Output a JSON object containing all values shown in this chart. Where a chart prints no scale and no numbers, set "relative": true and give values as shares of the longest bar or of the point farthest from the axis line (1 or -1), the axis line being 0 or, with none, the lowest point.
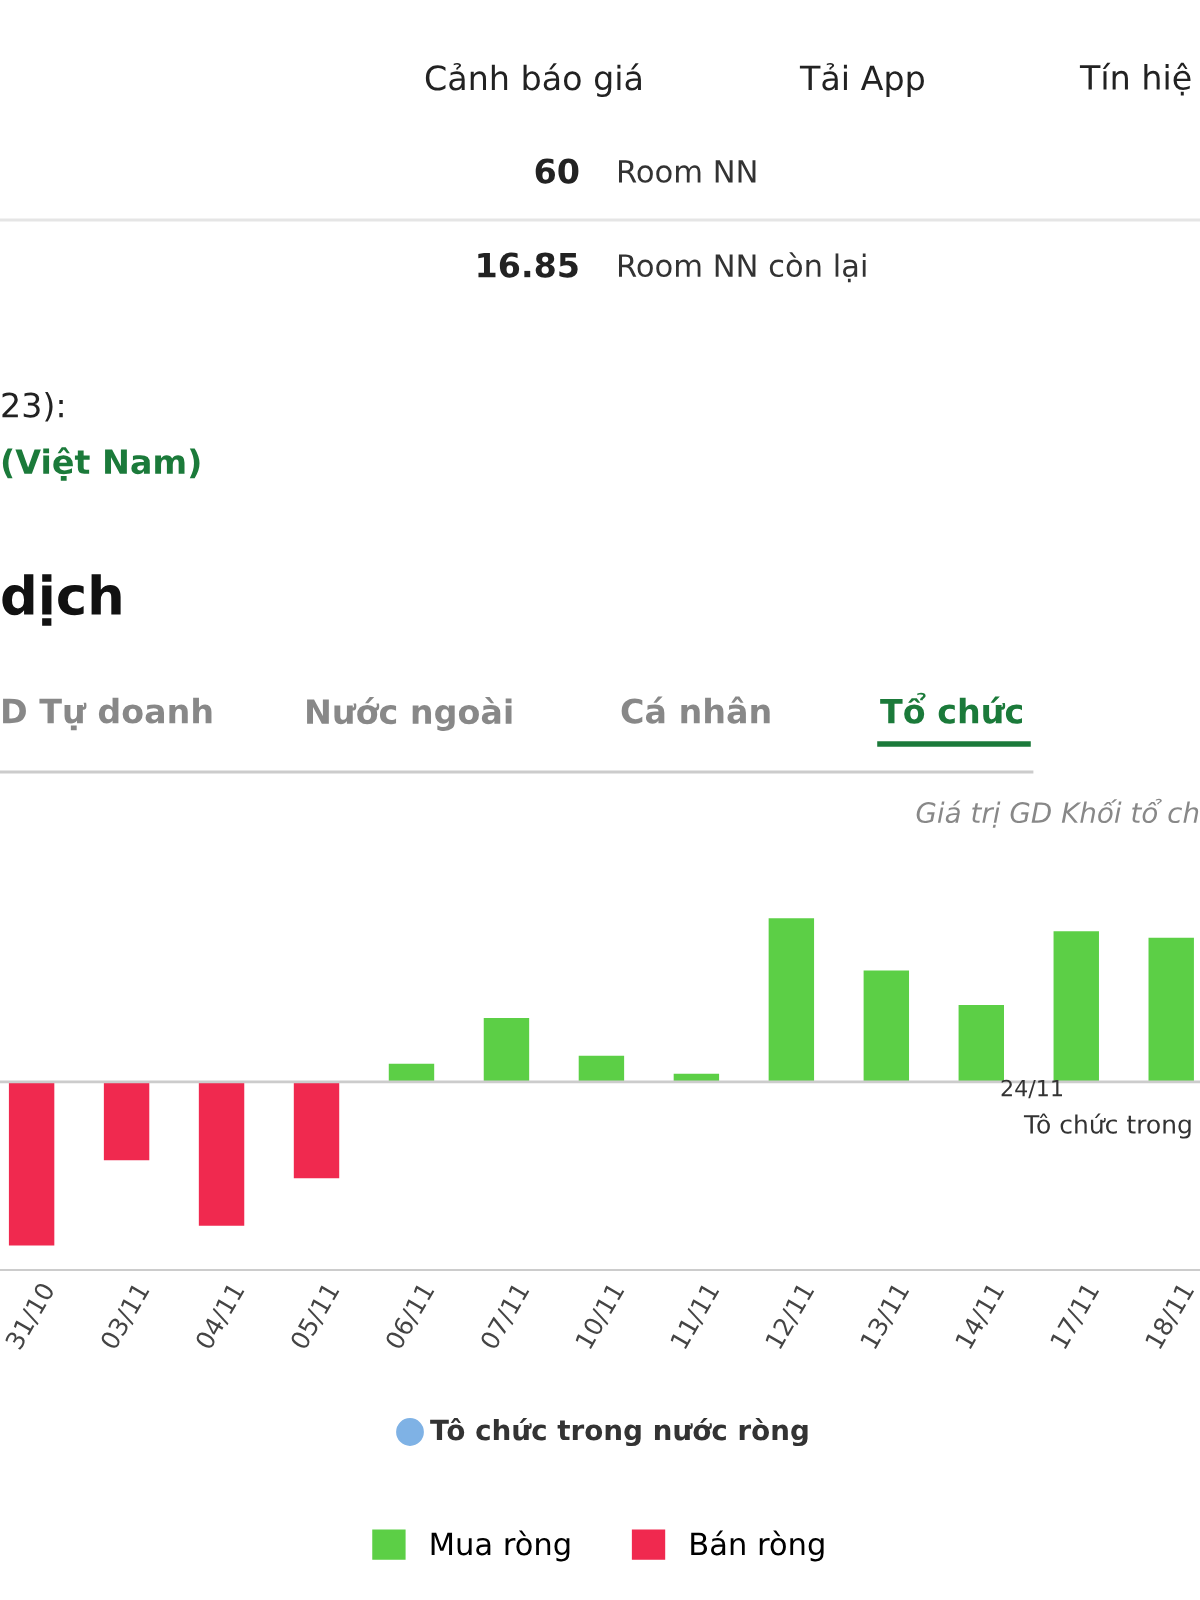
{
  "chart_data": {
    "type": "bar",
    "relative": true,
    "subtitle": "Giá trị GD Khối tổ ch",
    "categories": [
      "31/10",
      "03/11",
      "04/11",
      "05/11",
      "06/11",
      "07/11",
      "10/11",
      "11/11",
      "12/11",
      "13/11",
      "14/11",
      "17/11",
      "18/11"
    ],
    "series": [
      {
        "name": "Mua ròng",
        "color": "#5ccf46",
        "values": [
          null,
          null,
          null,
          null,
          0.11,
          0.39,
          0.16,
          0.05,
          1,
          0.68,
          0.47,
          0.92,
          0.88
        ]
      },
      {
        "name": "Bán ròng",
        "color": "#f0294f",
        "values": [
          -1,
          -0.48,
          -0.88,
          -0.59,
          null,
          null,
          null,
          null,
          null,
          null,
          null,
          null,
          null
        ]
      }
    ],
    "legend": "bottom",
    "grid": false,
    "annotations": [
      "Cảnh báo giá",
      "Tải App",
      "Tín hiệ",
      "60",
      "Room NN",
      "16.85",
      "Room NN còn lại",
      "23):",
      "(Việt Nam)",
      "dịch",
      "D Tự doanh",
      "Nước ngoài",
      "Cá nhân",
      "Tổ chức",
      "Tô chức trong nước ròng",
      "24/11",
      "Tô chức trong"
    ]
  }
}
